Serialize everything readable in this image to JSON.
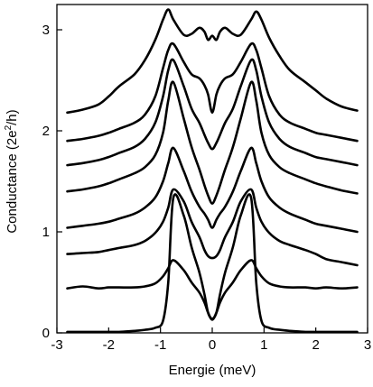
{
  "chart_data": {
    "type": "line",
    "xlabel": "Energie (meV)",
    "ylabel_main": "Conductance (2e",
    "ylabel_sup": "2",
    "ylabel_tail": "/h)",
    "xlim": [
      -3,
      3
    ],
    "ylim": [
      0,
      3.25
    ],
    "x_ticks": [
      -3,
      -2,
      -1,
      0,
      1,
      2,
      3
    ],
    "y_ticks": [
      0,
      1,
      2,
      3
    ],
    "grid": false,
    "series": [
      {
        "x": [
          -2.8,
          -2.5,
          -2.2,
          -2.0,
          -1.8,
          -1.5,
          -1.3,
          -1.1,
          -0.95,
          -0.85,
          -0.75,
          -0.55,
          -0.4,
          -0.25,
          -0.15,
          -0.08,
          0,
          0.08,
          0.15,
          0.25,
          0.4,
          0.55,
          0.75,
          0.85,
          0.95,
          1.1,
          1.3,
          1.5,
          1.8,
          2.0,
          2.2,
          2.5,
          2.8
        ],
        "y": [
          0.44,
          0.46,
          0.44,
          0.45,
          0.45,
          0.45,
          0.46,
          0.49,
          0.56,
          0.64,
          0.72,
          0.62,
          0.5,
          0.4,
          0.3,
          0.2,
          0.13,
          0.2,
          0.3,
          0.4,
          0.5,
          0.62,
          0.72,
          0.64,
          0.56,
          0.49,
          0.46,
          0.45,
          0.45,
          0.44,
          0.45,
          0.44,
          0.45
        ]
      },
      {
        "x": [
          -2.8,
          -2.5,
          -2.2,
          -2.0,
          -1.8,
          -1.5,
          -1.3,
          -1.1,
          -0.95,
          -0.85,
          -0.75,
          -0.55,
          -0.4,
          -0.25,
          -0.15,
          -0.08,
          0,
          0.08,
          0.15,
          0.25,
          0.4,
          0.55,
          0.75,
          0.85,
          0.95,
          1.1,
          1.3,
          1.5,
          1.8,
          2.0,
          2.2,
          2.5,
          2.8
        ],
        "y": [
          0.01,
          0.01,
          0.01,
          0.01,
          0.01,
          0.02,
          0.03,
          0.05,
          0.12,
          0.5,
          1.34,
          1.16,
          0.85,
          0.6,
          0.38,
          0.2,
          0.14,
          0.2,
          0.38,
          0.6,
          0.85,
          1.16,
          1.34,
          0.5,
          0.12,
          0.05,
          0.03,
          0.02,
          0.01,
          0.01,
          0.01,
          0.01,
          0.01
        ]
      },
      {
        "x": [
          -2.8,
          -2.5,
          -2.2,
          -2.0,
          -1.8,
          -1.5,
          -1.3,
          -1.1,
          -0.95,
          -0.85,
          -0.75,
          -0.55,
          -0.4,
          -0.25,
          -0.15,
          -0.08,
          0,
          0.08,
          0.15,
          0.25,
          0.4,
          0.55,
          0.75,
          0.85,
          0.95,
          1.1,
          1.3,
          1.5,
          1.8,
          2.0,
          2.2,
          2.5,
          2.8
        ],
        "y": [
          0.78,
          0.79,
          0.8,
          0.82,
          0.84,
          0.87,
          0.91,
          0.99,
          1.1,
          1.24,
          1.42,
          1.3,
          1.1,
          0.95,
          0.82,
          0.76,
          0.74,
          0.76,
          0.82,
          0.95,
          1.1,
          1.3,
          1.42,
          1.24,
          1.1,
          0.99,
          0.91,
          0.87,
          0.82,
          0.78,
          0.73,
          0.7,
          0.67
        ]
      },
      {
        "x": [
          -2.8,
          -2.5,
          -2.2,
          -2.0,
          -1.8,
          -1.5,
          -1.3,
          -1.1,
          -0.95,
          -0.85,
          -0.75,
          -0.55,
          -0.4,
          -0.25,
          -0.15,
          -0.08,
          0,
          0.08,
          0.15,
          0.25,
          0.4,
          0.55,
          0.75,
          0.85,
          0.95,
          1.1,
          1.3,
          1.5,
          1.8,
          2.0,
          2.2,
          2.5,
          2.8
        ],
        "y": [
          1.04,
          1.06,
          1.08,
          1.1,
          1.13,
          1.18,
          1.24,
          1.34,
          1.5,
          1.68,
          1.83,
          1.6,
          1.4,
          1.25,
          1.18,
          1.12,
          1.04,
          1.12,
          1.18,
          1.25,
          1.4,
          1.6,
          1.83,
          1.68,
          1.5,
          1.34,
          1.24,
          1.18,
          1.12,
          1.08,
          1.06,
          1.03,
          1.0
        ]
      },
      {
        "x": [
          -2.8,
          -2.5,
          -2.2,
          -2.0,
          -1.8,
          -1.5,
          -1.3,
          -1.1,
          -0.95,
          -0.85,
          -0.75,
          -0.55,
          -0.4,
          -0.25,
          -0.15,
          -0.08,
          0,
          0.08,
          0.15,
          0.25,
          0.4,
          0.55,
          0.75,
          0.85,
          0.95,
          1.1,
          1.3,
          1.5,
          1.8,
          2.0,
          2.2,
          2.5,
          2.8
        ],
        "y": [
          1.4,
          1.42,
          1.45,
          1.48,
          1.52,
          1.58,
          1.64,
          1.76,
          1.98,
          2.3,
          2.48,
          2.12,
          1.84,
          1.62,
          1.46,
          1.36,
          1.28,
          1.36,
          1.46,
          1.62,
          1.84,
          2.12,
          2.48,
          2.3,
          1.98,
          1.76,
          1.64,
          1.58,
          1.52,
          1.48,
          1.45,
          1.41,
          1.38
        ]
      },
      {
        "x": [
          -2.8,
          -2.5,
          -2.2,
          -2.0,
          -1.8,
          -1.5,
          -1.3,
          -1.1,
          -0.95,
          -0.85,
          -0.75,
          -0.55,
          -0.4,
          -0.25,
          -0.15,
          -0.08,
          0,
          0.08,
          0.15,
          0.25,
          0.4,
          0.55,
          0.75,
          0.85,
          0.95,
          1.1,
          1.3,
          1.5,
          1.8,
          2.0,
          2.2,
          2.5,
          2.8
        ],
        "y": [
          1.66,
          1.68,
          1.71,
          1.74,
          1.78,
          1.84,
          1.92,
          2.08,
          2.34,
          2.6,
          2.7,
          2.44,
          2.22,
          2.08,
          1.96,
          1.88,
          1.82,
          1.88,
          1.96,
          2.08,
          2.22,
          2.44,
          2.7,
          2.6,
          2.34,
          2.08,
          1.92,
          1.84,
          1.78,
          1.74,
          1.72,
          1.69,
          1.66
        ]
      },
      {
        "x": [
          -2.8,
          -2.5,
          -2.2,
          -2.0,
          -1.8,
          -1.5,
          -1.3,
          -1.1,
          -0.95,
          -0.85,
          -0.75,
          -0.55,
          -0.4,
          -0.25,
          -0.15,
          -0.08,
          0,
          0.08,
          0.15,
          0.25,
          0.4,
          0.55,
          0.75,
          0.85,
          0.95,
          1.1,
          1.3,
          1.5,
          1.8,
          2.0,
          2.2,
          2.5,
          2.8
        ],
        "y": [
          1.9,
          1.92,
          1.95,
          1.98,
          2.02,
          2.08,
          2.16,
          2.34,
          2.62,
          2.8,
          2.86,
          2.68,
          2.56,
          2.52,
          2.45,
          2.36,
          2.18,
          2.36,
          2.45,
          2.52,
          2.56,
          2.68,
          2.86,
          2.8,
          2.62,
          2.34,
          2.16,
          2.08,
          2.02,
          1.98,
          1.96,
          1.93,
          1.9
        ]
      },
      {
        "x": [
          -2.8,
          -2.5,
          -2.2,
          -2.0,
          -1.8,
          -1.5,
          -1.3,
          -1.1,
          -0.95,
          -0.85,
          -0.75,
          -0.55,
          -0.4,
          -0.25,
          -0.15,
          -0.08,
          0,
          0.08,
          0.15,
          0.25,
          0.4,
          0.55,
          0.75,
          0.85,
          0.95,
          1.1,
          1.3,
          1.5,
          1.8,
          2.0,
          2.2,
          2.5,
          2.8
        ],
        "y": [
          2.18,
          2.21,
          2.26,
          2.34,
          2.44,
          2.56,
          2.7,
          2.9,
          3.1,
          3.2,
          3.1,
          2.95,
          2.96,
          3.02,
          2.98,
          2.9,
          2.94,
          2.9,
          2.98,
          3.02,
          2.96,
          2.95,
          3.1,
          3.18,
          3.1,
          2.92,
          2.74,
          2.6,
          2.48,
          2.4,
          2.32,
          2.24,
          2.2
        ]
      }
    ]
  }
}
